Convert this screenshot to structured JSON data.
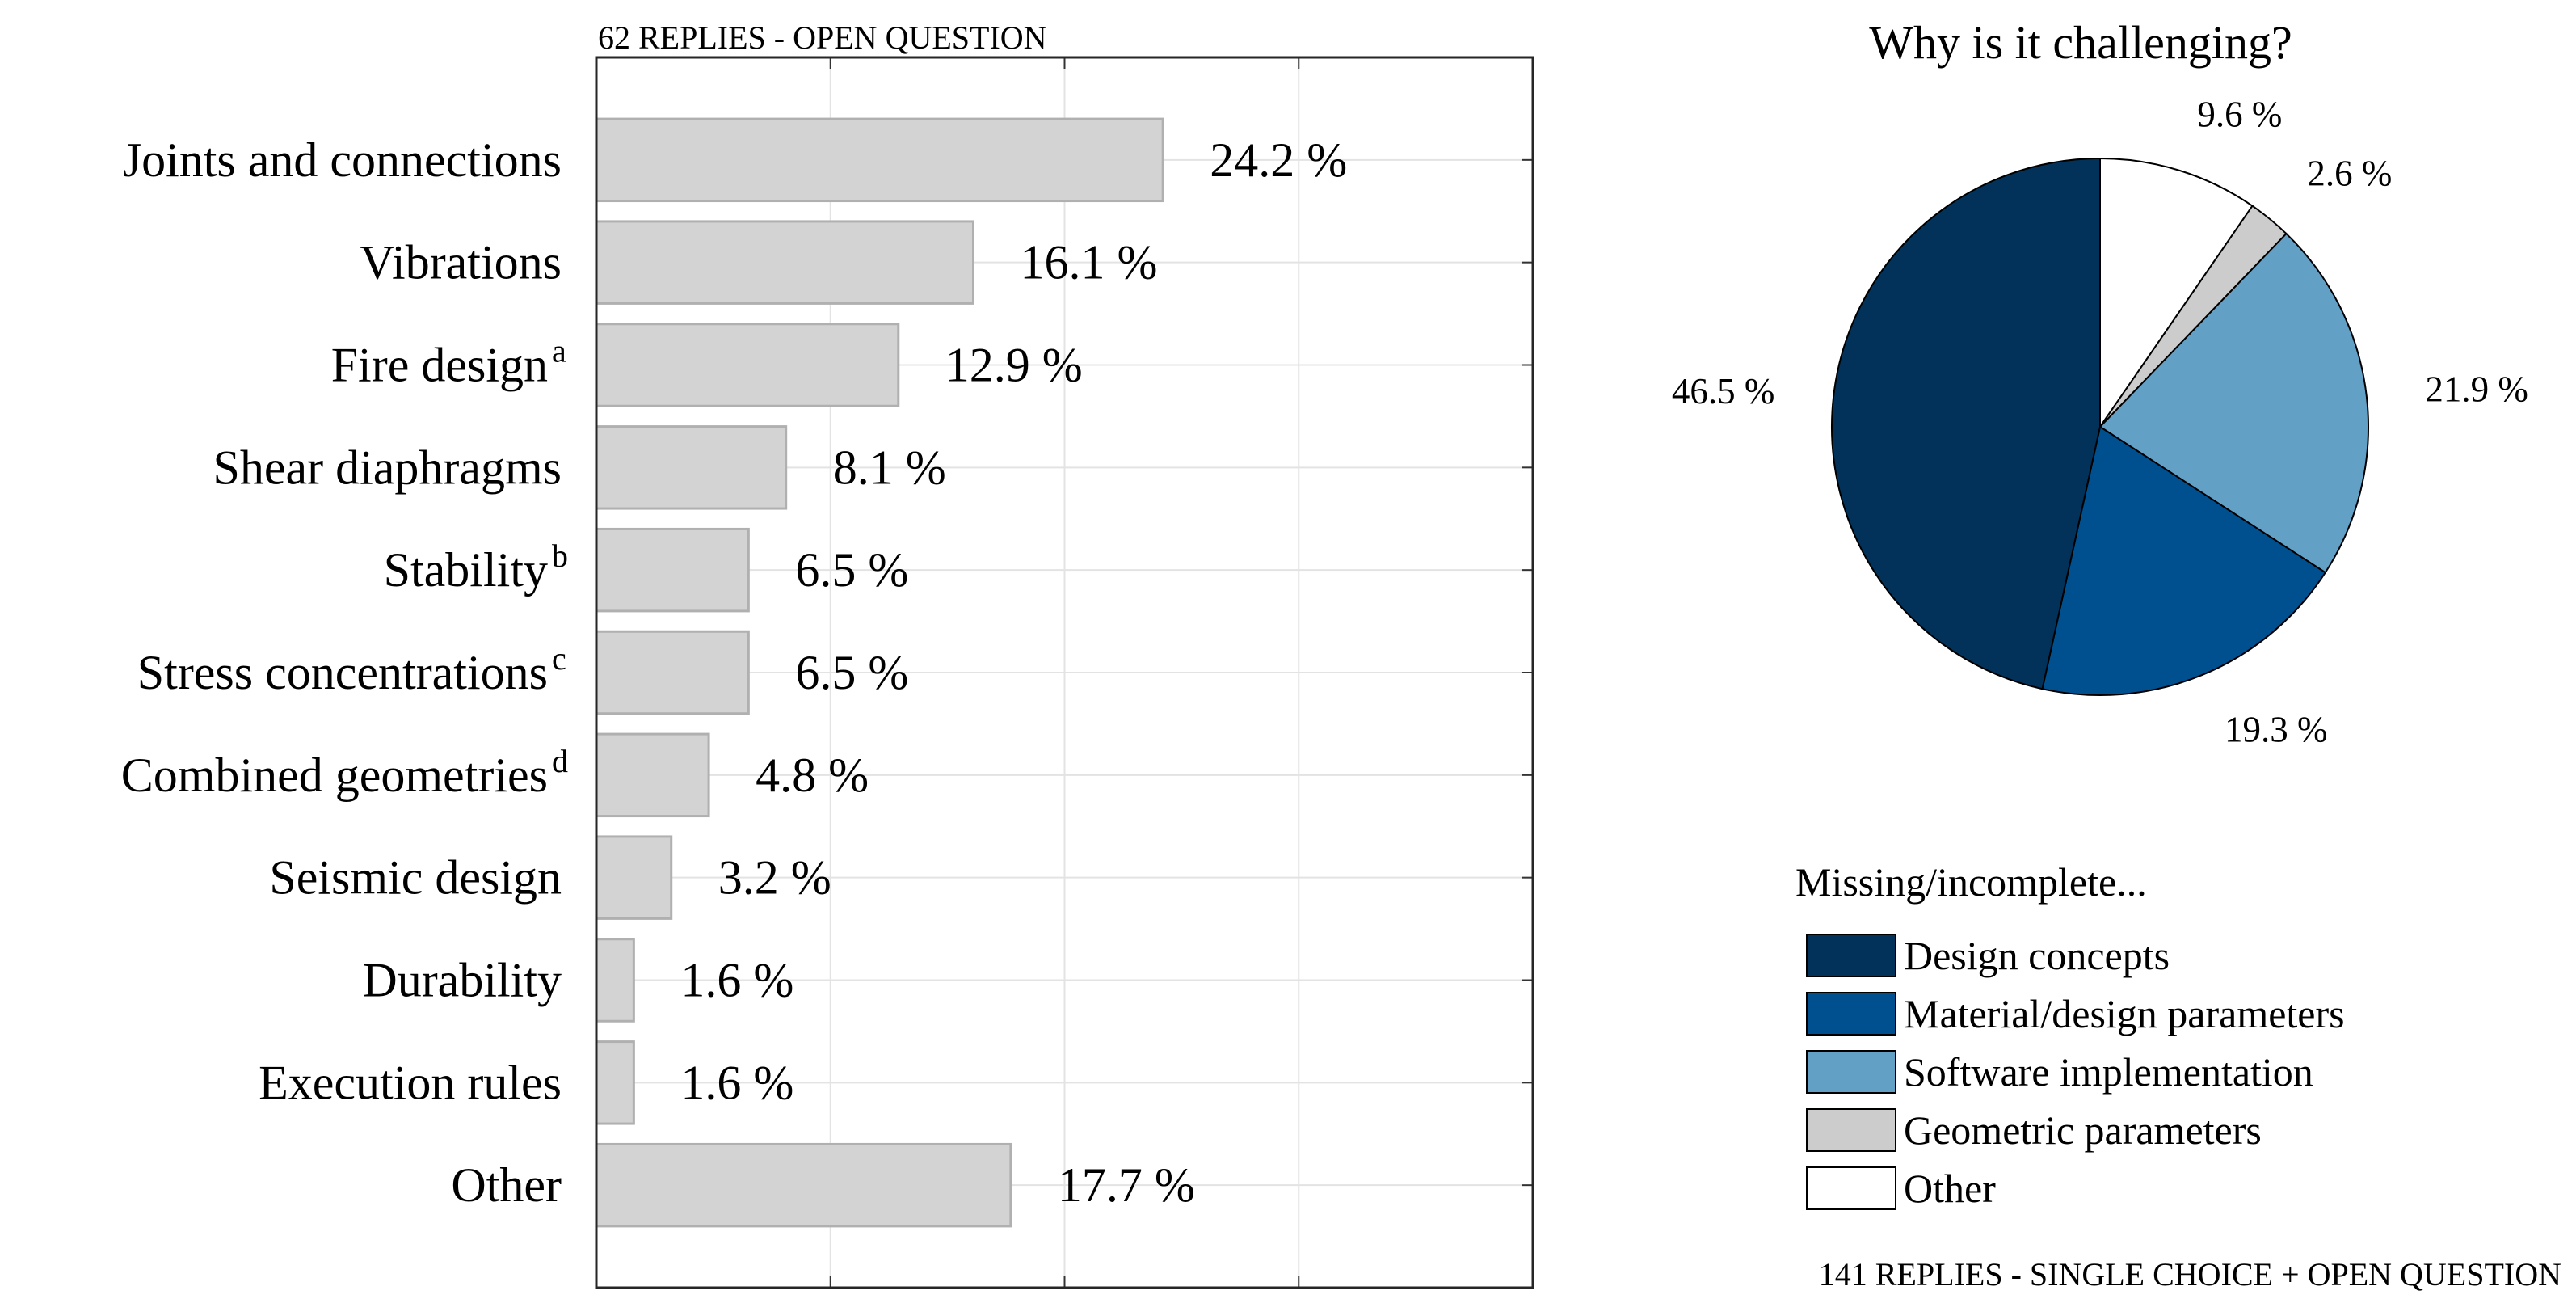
{
  "chart_data": [
    {
      "type": "bar",
      "orientation": "horizontal",
      "title": "62 REPLIES - OPEN QUESTION",
      "categories": [
        "Joints and connections",
        "Vibrations",
        "Fire design",
        "Shear diaphragms",
        "Stability",
        "Stress concentrations",
        "Combined geometries",
        "Seismic design",
        "Durability",
        "Execution rules",
        "Other"
      ],
      "superscripts": [
        "",
        "",
        "a",
        "",
        "b",
        "c",
        "d",
        "",
        "",
        "",
        ""
      ],
      "values": [
        24.2,
        16.1,
        12.9,
        8.1,
        6.5,
        6.5,
        4.8,
        3.2,
        1.6,
        1.6,
        17.7
      ],
      "value_labels": [
        "24.2 %",
        "16.1 %",
        "12.9 %",
        "8.1 %",
        "6.5 %",
        "6.5 %",
        "4.8 %",
        "3.2 %",
        "1.6 %",
        "1.6 %",
        "17.7 %"
      ],
      "xlim": [
        0,
        40
      ],
      "grid": true,
      "bar_color": "#d3d3d3",
      "bar_edge_color": "#b0b0b0",
      "xlabel": "",
      "ylabel": ""
    },
    {
      "type": "pie",
      "title": "Why is it challenging?",
      "legend_title": "Missing/incomplete...",
      "legend_placement": "bottom",
      "slices": [
        {
          "name": "Other",
          "value": 9.6,
          "label": "9.6 %",
          "color": "#ffffff"
        },
        {
          "name": "Geometric parameters",
          "value": 2.6,
          "label": "2.6 %",
          "color": "#cccccc"
        },
        {
          "name": "Software implementation",
          "value": 21.9,
          "label": "21.9 %",
          "color": "#63a0c6"
        },
        {
          "name": "Material/design parameters",
          "value": 19.3,
          "label": "19.3 %",
          "color": "#004f8f"
        },
        {
          "name": "Design concepts",
          "value": 46.5,
          "label": "46.5 %",
          "color": "#023259"
        }
      ],
      "legend_order": [
        "Design concepts",
        "Material/design parameters",
        "Software implementation",
        "Geometric parameters",
        "Other"
      ],
      "footnote": "141 REPLIES - SINGLE CHOICE + OPEN QUESTION"
    }
  ]
}
